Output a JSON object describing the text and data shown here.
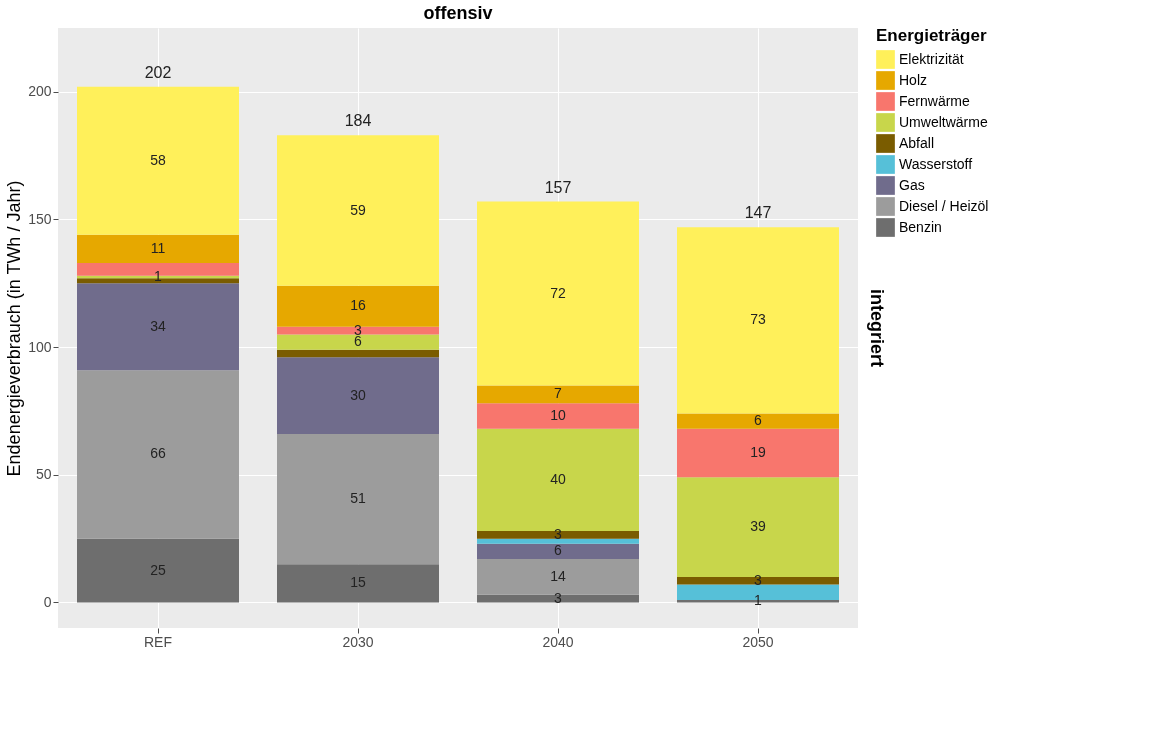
{
  "chart_data": {
    "type": "bar",
    "stacked": true,
    "ylabel": "Endenergieverbrauch (in TWh / Jahr)",
    "legend_title": "Energieträger",
    "annotations": [
      "offensiv",
      "integriert"
    ],
    "categories": [
      "REF",
      "2030",
      "2040",
      "2050"
    ],
    "ylim": [
      -10,
      225
    ],
    "yticks": [
      0,
      50,
      100,
      150,
      200
    ],
    "grid": true,
    "legend": "right",
    "totals": [
      "202",
      "184",
      "157",
      "147"
    ],
    "series": [
      {
        "name": "Benzin",
        "color": "#6e6e6e",
        "values": [
          25,
          15,
          3,
          1
        ],
        "value_labels": [
          "25",
          "15",
          "3",
          "1"
        ]
      },
      {
        "name": "Diesel / Heizöl",
        "color": "#9c9c9c",
        "values": [
          66,
          51,
          14,
          0
        ],
        "value_labels": [
          "66",
          "51",
          "14",
          null
        ]
      },
      {
        "name": "Gas",
        "color": "#706c8c",
        "values": [
          34,
          30,
          6,
          0
        ],
        "value_labels": [
          "34",
          "30",
          "6",
          null
        ]
      },
      {
        "name": "Wasserstoff",
        "color": "#56c0d8",
        "values": [
          0,
          0,
          2,
          6
        ],
        "value_labels": [
          null,
          null,
          null,
          null
        ]
      },
      {
        "name": "Abfall",
        "color": "#7a5c00",
        "values": [
          2,
          3,
          3,
          3
        ],
        "value_labels": [
          null,
          null,
          "3",
          "3"
        ]
      },
      {
        "name": "Umweltwärme",
        "color": "#c8d64b",
        "values": [
          1,
          6,
          40,
          39
        ],
        "value_labels": [
          "1",
          "6",
          "40",
          "39"
        ]
      },
      {
        "name": "Fernwärme",
        "color": "#f8766d",
        "values": [
          5,
          3,
          10,
          19
        ],
        "value_labels": [
          null,
          "3",
          "10",
          "19"
        ]
      },
      {
        "name": "Holz",
        "color": "#e6a800",
        "values": [
          11,
          16,
          7,
          6
        ],
        "value_labels": [
          "11",
          "16",
          "7",
          "6"
        ]
      },
      {
        "name": "Elektrizität",
        "color": "#fff05a",
        "values": [
          58,
          59,
          72,
          73
        ],
        "value_labels": [
          "58",
          "59",
          "72",
          "73"
        ]
      }
    ]
  }
}
